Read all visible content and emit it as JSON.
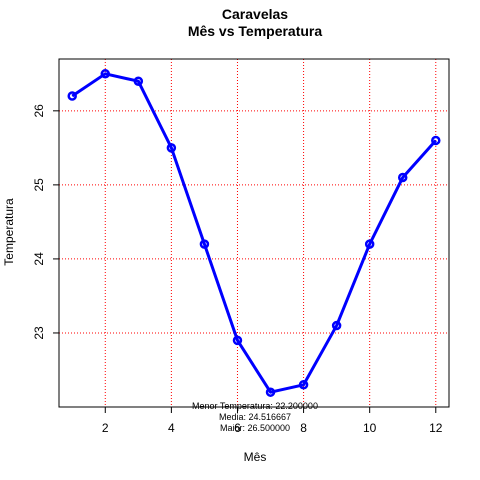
{
  "chart_data": {
    "type": "line",
    "title": "Caravelas",
    "subtitle": "Mês vs Temperatura",
    "xlabel": "Mês",
    "ylabel": "Temperatura",
    "xlim": [
      0.6,
      12.4
    ],
    "ylim": [
      22.0,
      26.7
    ],
    "x_ticks": [
      2,
      4,
      6,
      8,
      10,
      12
    ],
    "y_ticks": [
      23,
      24,
      25,
      26
    ],
    "grid": true,
    "series": [
      {
        "x": [
          1,
          2,
          3,
          4,
          5,
          6,
          7,
          8,
          9,
          10,
          11,
          12
        ],
        "values": [
          26.2,
          26.5,
          26.4,
          25.5,
          24.2,
          22.9,
          22.2,
          22.3,
          23.1,
          24.2,
          25.1,
          25.6
        ],
        "color": "#0000ff"
      }
    ],
    "grid_color": "#ff0000",
    "annotations": [
      "Menor Temperatura: 22.200000",
      "Media: 24.516667",
      "Maior: 26.500000"
    ]
  }
}
